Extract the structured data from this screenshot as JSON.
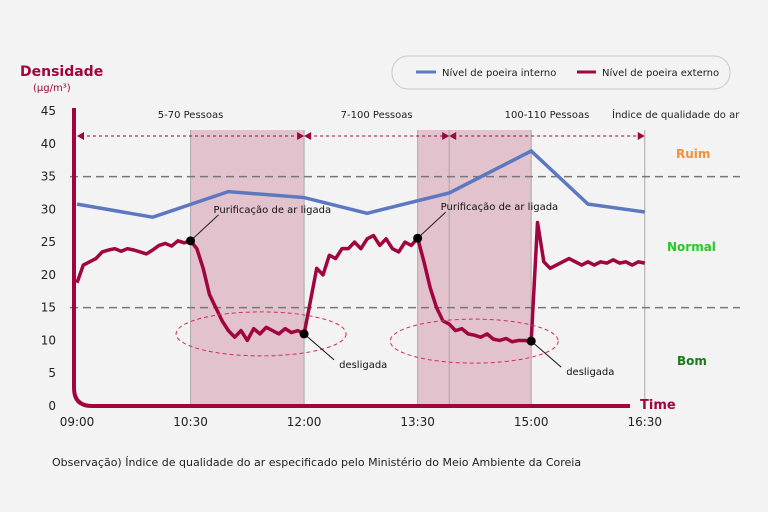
{
  "chart_data": {
    "type": "line",
    "ylabel": "Densidade",
    "yunit": "(µg/m³)",
    "xlabel": "Time",
    "ylim": [
      0,
      45
    ],
    "yticks": [
      0,
      5,
      10,
      15,
      20,
      25,
      30,
      35,
      40,
      45
    ],
    "xticks": [
      "09:00",
      "10:30",
      "12:00",
      "13:30",
      "15:00",
      "16:30"
    ],
    "legend_position": "top-right",
    "series": [
      {
        "name": "Nível de poeira interno",
        "color": "#5b78c0",
        "points": [
          [
            "09:00",
            30.8
          ],
          [
            "10:00",
            28.8
          ],
          [
            "11:00",
            32.7
          ],
          [
            "12:00",
            31.8
          ],
          [
            "12:50",
            29.4
          ],
          [
            "13:55",
            32.5
          ],
          [
            "15:00",
            38.9
          ],
          [
            "15:45",
            30.8
          ],
          [
            "16:30",
            29.6
          ]
        ]
      },
      {
        "name": "Nível de poeira externo",
        "color": "#a0053f",
        "interval_minutes": 5,
        "start": "09:00",
        "values": [
          18.8,
          21.5,
          22,
          22.5,
          23.5,
          23.8,
          24,
          23.6,
          24,
          23.8,
          23.5,
          23.2,
          23.8,
          24.5,
          24.8,
          24.4,
          25.2,
          24.9,
          25.2,
          24,
          21,
          17,
          15,
          13,
          11.5,
          10.5,
          11.5,
          10,
          11.8,
          11,
          12,
          11.5,
          11,
          11.8,
          11.2,
          11.5,
          11,
          16,
          21,
          20,
          23,
          22.5,
          24,
          24,
          25,
          24,
          25.5,
          26,
          24.5,
          25.5,
          24,
          23.5,
          25,
          24.5,
          25.6,
          22,
          18,
          15,
          13,
          12.5,
          11.5,
          11.8,
          11,
          10.8,
          10.5,
          11,
          10.2,
          10,
          10.3,
          9.8,
          10,
          10,
          9.9,
          28,
          22,
          21,
          21.5,
          22,
          22.5,
          22,
          21.5,
          22,
          21.5,
          22,
          21.8,
          22.3,
          21.8,
          22,
          21.5,
          22,
          21.8
        ]
      }
    ],
    "thresholds": [
      35,
      15
    ],
    "shaded_ranges": [
      [
        "10:30",
        "12:00"
      ],
      [
        "13:30",
        "15:00"
      ]
    ],
    "periods": [
      {
        "label": "5-70 Pessoas",
        "from": "09:00",
        "to": "12:00"
      },
      {
        "label": "7-100 Pessoas",
        "from": "12:00",
        "to": "13:55"
      },
      {
        "label": "100-110 Pessoas",
        "from": "13:55",
        "to": "16:30"
      }
    ],
    "air_quality_title": "Índice de qualidade do ar",
    "zones": [
      {
        "label": "Ruim",
        "color": "#f0923a"
      },
      {
        "label": "Normal",
        "color": "#22cc22"
      },
      {
        "label": "Bom",
        "color": "#1a7a1a"
      }
    ],
    "annotations": [
      {
        "text": "Purificação de ar ligada",
        "at": "10:30",
        "value": 25.2
      },
      {
        "text": "desligada",
        "at": "12:00",
        "value": 11
      },
      {
        "text": "Purificação de ar ligada",
        "at": "13:30",
        "value": 25.6
      },
      {
        "text": "desligada",
        "at": "15:00",
        "value": 9.9
      }
    ]
  },
  "note": "Observação) Índice de qualidade do ar especificado pelo Ministério do Meio Ambiente da Coreia"
}
